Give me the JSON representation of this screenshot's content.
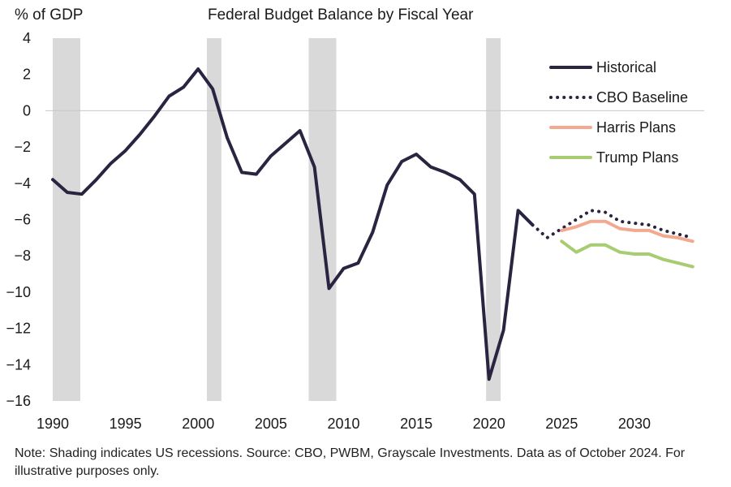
{
  "chart_data": {
    "type": "line",
    "title": "Federal Budget Balance by Fiscal Year",
    "ylabel": "% of GDP",
    "xlabel": "",
    "xlim": [
      1989.5,
      2034.8
    ],
    "ylim": [
      -16,
      4
    ],
    "yticks": [
      4,
      2,
      0,
      -2,
      -4,
      -6,
      -8,
      -10,
      -12,
      -14,
      -16
    ],
    "xticks": [
      1990,
      1995,
      2000,
      2005,
      2010,
      2015,
      2020,
      2025,
      2030
    ],
    "recessions": [
      [
        1990,
        1991.9
      ],
      [
        2000.6,
        2001.6
      ],
      [
        2007.6,
        2009.5
      ],
      [
        2019.8,
        2020.8
      ]
    ],
    "series": [
      {
        "name": "Historical",
        "color": "#2b2440",
        "style": "solid",
        "x": [
          1990,
          1991,
          1992,
          1993,
          1994,
          1995,
          1996,
          1997,
          1998,
          1999,
          2000,
          2001,
          2002,
          2003,
          2004,
          2005,
          2006,
          2007,
          2008,
          2009,
          2010,
          2011,
          2012,
          2013,
          2014,
          2015,
          2016,
          2017,
          2018,
          2019,
          2020,
          2021,
          2022,
          2023
        ],
        "values": [
          -3.8,
          -4.5,
          -4.6,
          -3.8,
          -2.9,
          -2.2,
          -1.3,
          -0.3,
          0.8,
          1.3,
          2.3,
          1.2,
          -1.5,
          -3.4,
          -3.5,
          -2.5,
          -1.8,
          -1.1,
          -3.1,
          -9.8,
          -8.7,
          -8.4,
          -6.7,
          -4.1,
          -2.8,
          -2.4,
          -3.1,
          -3.4,
          -3.8,
          -4.6,
          -14.8,
          -12.1,
          -5.5,
          -6.3
        ]
      },
      {
        "name": "CBO Baseline",
        "color": "#2b2440",
        "style": "dotted",
        "x": [
          2023,
          2024,
          2025,
          2026,
          2027,
          2028,
          2029,
          2030,
          2031,
          2032,
          2033,
          2034
        ],
        "values": [
          -6.3,
          -7.0,
          -6.5,
          -6.0,
          -5.5,
          -5.6,
          -6.1,
          -6.2,
          -6.3,
          -6.6,
          -6.8,
          -7.0
        ]
      },
      {
        "name": "Harris Plans",
        "color": "#f3a98f",
        "style": "solid",
        "x": [
          2025,
          2026,
          2027,
          2028,
          2029,
          2030,
          2031,
          2032,
          2033,
          2034
        ],
        "values": [
          -6.6,
          -6.4,
          -6.1,
          -6.1,
          -6.5,
          -6.6,
          -6.6,
          -6.9,
          -7.0,
          -7.2
        ]
      },
      {
        "name": "Trump Plans",
        "color": "#a8cc72",
        "style": "solid",
        "x": [
          2025,
          2026,
          2027,
          2028,
          2029,
          2030,
          2031,
          2032,
          2033,
          2034
        ],
        "values": [
          -7.2,
          -7.8,
          -7.4,
          -7.4,
          -7.8,
          -7.9,
          -7.9,
          -8.2,
          -8.4,
          -8.6
        ]
      }
    ]
  },
  "note": "Note: Shading indicates US recessions. Source: CBO, PWBM, Grayscale Investments. Data as of October 2024. For illustrative purposes only."
}
